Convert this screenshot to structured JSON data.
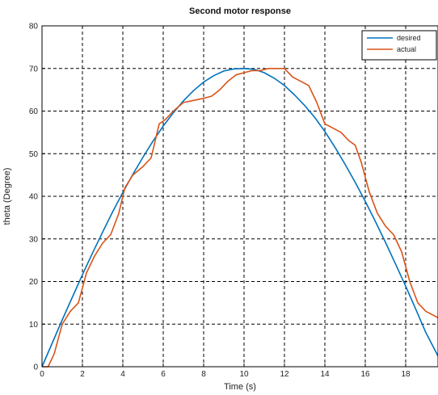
{
  "chart_data": {
    "type": "line",
    "title": "Second motor response",
    "xlabel": "Time (s)",
    "ylabel": "theta (Degree)",
    "xlim": [
      0,
      19.6
    ],
    "ylim": [
      0,
      80
    ],
    "xticks": [
      0,
      2,
      4,
      6,
      8,
      10,
      12,
      14,
      16,
      18
    ],
    "yticks": [
      0,
      10,
      20,
      30,
      40,
      50,
      60,
      70,
      80
    ],
    "grid": true,
    "legend_position": "top-right",
    "series": [
      {
        "name": "desired",
        "color": "#0072BD",
        "x": [
          0,
          0.5,
          1,
          1.5,
          2,
          2.5,
          3,
          3.5,
          4,
          4.5,
          5,
          5.5,
          6,
          6.5,
          7,
          7.5,
          8,
          8.5,
          9,
          9.5,
          10,
          10.5,
          11,
          11.5,
          12,
          12.5,
          13,
          13.5,
          14,
          14.5,
          15,
          15.5,
          16,
          16.5,
          17,
          17.5,
          18,
          18.5,
          19,
          19.6
        ],
        "y": [
          0,
          5.5,
          11,
          16.3,
          21.6,
          26.7,
          31.6,
          36.4,
          40.9,
          45.2,
          49.2,
          53,
          56.5,
          59.6,
          62.4,
          64.8,
          66.8,
          68.3,
          69.4,
          69.9,
          70,
          69.8,
          69,
          67.7,
          66,
          63.8,
          61.3,
          58.5,
          55.2,
          51.5,
          47.5,
          43.3,
          38.8,
          34.1,
          29.2,
          24.1,
          18.9,
          13.5,
          8,
          2.5
        ]
      },
      {
        "name": "actual",
        "color": "#D95319",
        "x": [
          0,
          0.3,
          0.6,
          1,
          1.4,
          1.8,
          2.2,
          2.6,
          3,
          3.4,
          3.8,
          4.1,
          4.5,
          5,
          5.4,
          5.8,
          6.1,
          6.5,
          7,
          7.5,
          8,
          8.4,
          8.8,
          9.2,
          9.6,
          10,
          10.4,
          10.8,
          11.2,
          11.6,
          12,
          12.4,
          12.8,
          13.2,
          13.6,
          14,
          14.4,
          14.8,
          15.2,
          15.5,
          15.8,
          16.2,
          16.6,
          17,
          17.4,
          17.8,
          18.2,
          18.6,
          19,
          19.6
        ],
        "y": [
          0,
          0,
          3,
          10,
          13,
          15,
          22,
          26,
          29,
          31,
          36,
          42,
          45,
          47,
          49,
          57,
          58,
          60,
          62,
          62.5,
          63,
          63.5,
          65,
          67,
          68.5,
          69,
          69.5,
          69.5,
          70,
          70,
          70,
          68,
          67,
          66,
          62,
          57,
          56,
          55,
          53,
          52,
          48,
          41,
          36,
          33,
          31,
          27,
          20,
          15,
          13,
          11.5
        ]
      }
    ]
  }
}
